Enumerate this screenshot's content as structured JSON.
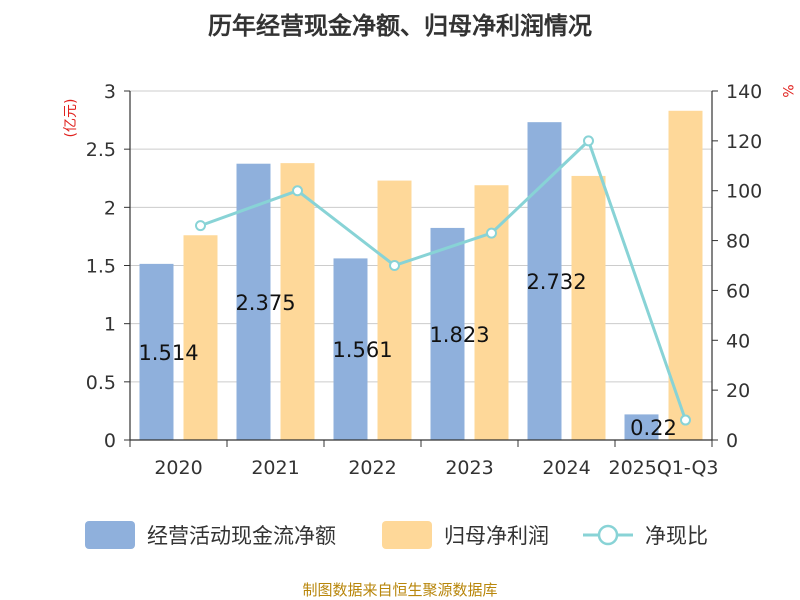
{
  "chart_data": {
    "type": "bar",
    "title": "历年经营现金净额、归母净利润情况",
    "categories": [
      "2020",
      "2021",
      "2022",
      "2023",
      "2024",
      "2025Q1-Q3"
    ],
    "series": [
      {
        "name": "经营活动现金流净额",
        "type": "bar",
        "axis": "left",
        "color": "#8fb0dc",
        "values": [
          1.514,
          2.375,
          1.561,
          1.823,
          2.732,
          0.22
        ],
        "labels": [
          "1.514",
          "2.375",
          "1.561",
          "1.823",
          "2.732",
          "0.22"
        ]
      },
      {
        "name": "归母净利润",
        "type": "bar",
        "axis": "left",
        "color": "#fed899",
        "values": [
          1.76,
          2.38,
          2.23,
          2.19,
          2.27,
          2.83
        ]
      },
      {
        "name": "净现比",
        "type": "line",
        "axis": "right",
        "color": "#88d3d6",
        "values": [
          86,
          100,
          70,
          83,
          120,
          8
        ]
      }
    ],
    "ylabel": "(亿元)",
    "y2label": "%",
    "ylim": [
      0,
      3
    ],
    "yticks": [
      "0",
      "0.5",
      "1",
      "1.5",
      "2",
      "2.5",
      "3"
    ],
    "y2lim": [
      0,
      140
    ],
    "y2ticks": [
      "0",
      "20",
      "40",
      "60",
      "80",
      "100",
      "120",
      "140"
    ],
    "grid": true,
    "legend_position": "bottom"
  },
  "source_text": "制图数据来自恒生聚源数据库"
}
